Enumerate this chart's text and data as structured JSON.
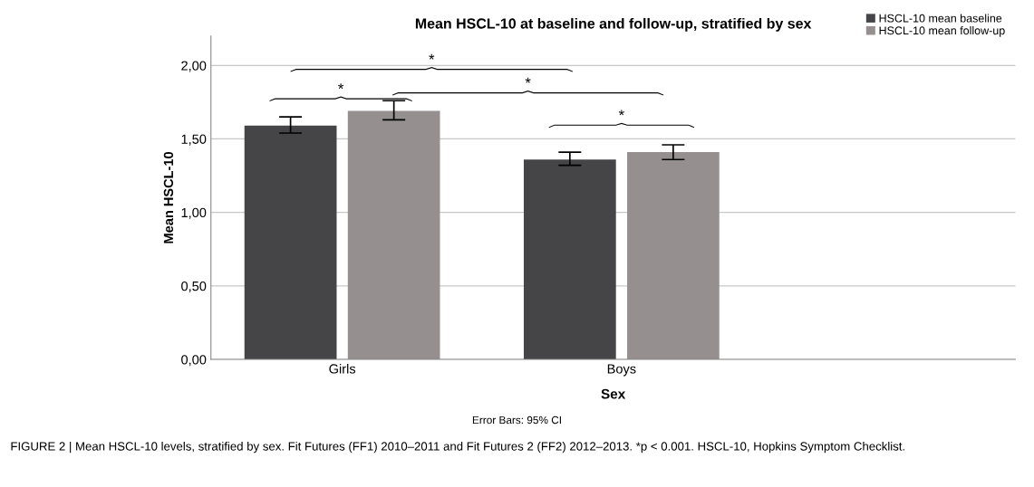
{
  "chart_data": {
    "type": "bar",
    "title": "Mean HSCL-10 at baseline and follow-up, stratified by sex",
    "xlabel": "Sex",
    "ylabel": "Mean HSCL-10",
    "categories": [
      "Girls",
      "Boys"
    ],
    "series": [
      {
        "name": "HSCL-10 mean baseline",
        "color": "#454547",
        "values": [
          1.59,
          1.36
        ],
        "errors": [
          [
            1.54,
            1.65
          ],
          [
            1.32,
            1.41
          ]
        ]
      },
      {
        "name": "HSCL-10 mean follow-up",
        "color": "#958f8f",
        "values": [
          1.69,
          1.41
        ],
        "errors": [
          [
            1.63,
            1.76
          ],
          [
            1.36,
            1.46
          ]
        ]
      }
    ],
    "ylim": [
      0,
      2.2
    ],
    "yticks": [
      {
        "value": 0,
        "label": "0,00"
      },
      {
        "value": 0.5,
        "label": "0,50"
      },
      {
        "value": 1.0,
        "label": "1,00"
      },
      {
        "value": 1.5,
        "label": "1,50"
      },
      {
        "value": 2.0,
        "label": "2,00"
      }
    ],
    "grid": "y",
    "legend": "top right",
    "annotations": [
      "*",
      "*",
      "*",
      "*",
      "Error Bars: 95% CI",
      "FIGURE 2 | Mean HSCL-10 levels, stratified by sex. Fit Futures (FF1) 2010–2011 and Fit Futures 2 (FF2) 2012–2013. *p < 0.001. HSCL-10, Hopkins Symptom Checklist."
    ]
  }
}
